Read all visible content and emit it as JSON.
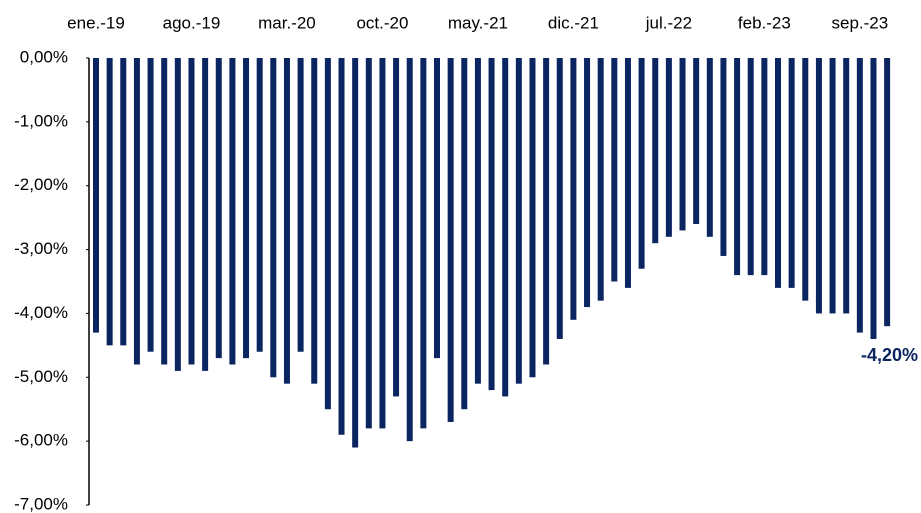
{
  "chart_data": {
    "type": "bar",
    "categories": [
      "ene.-19",
      null,
      null,
      null,
      null,
      null,
      null,
      "ago.-19",
      null,
      null,
      null,
      null,
      null,
      null,
      "mar.-20",
      null,
      null,
      null,
      null,
      null,
      null,
      "oct.-20",
      null,
      null,
      null,
      null,
      null,
      null,
      "may.-21",
      null,
      null,
      null,
      null,
      null,
      null,
      "dic.-21",
      null,
      null,
      null,
      null,
      null,
      null,
      "jul.-22",
      null,
      null,
      null,
      null,
      null,
      null,
      "feb.-23",
      null,
      null,
      null,
      null,
      null,
      null,
      "sep.-23",
      null,
      null
    ],
    "values": [
      -4.3,
      -4.5,
      -4.5,
      -4.8,
      -4.6,
      -4.8,
      -4.9,
      -4.8,
      -4.9,
      -4.7,
      -4.8,
      -4.7,
      -4.6,
      -5.0,
      -5.1,
      -4.6,
      -5.1,
      -5.5,
      -5.9,
      -6.1,
      -5.8,
      -5.8,
      -5.3,
      -6.0,
      -5.8,
      -4.7,
      -5.7,
      -5.5,
      -5.1,
      -5.2,
      -5.3,
      -5.1,
      -5.0,
      -4.8,
      -4.4,
      -4.1,
      -3.9,
      -3.8,
      -3.5,
      -3.6,
      -3.3,
      -2.9,
      -2.8,
      -2.7,
      -2.6,
      -2.8,
      -3.1,
      -3.4,
      -3.4,
      -3.4,
      -3.6,
      -3.6,
      -3.8,
      -4.0,
      -4.0,
      -4.0,
      -4.3,
      -4.4,
      -4.2
    ],
    "value_labels": [
      null,
      null,
      null,
      null,
      null,
      null,
      null,
      null,
      null,
      null,
      null,
      null,
      null,
      null,
      null,
      null,
      null,
      null,
      null,
      null,
      null,
      null,
      null,
      null,
      null,
      null,
      null,
      null,
      null,
      null,
      null,
      null,
      null,
      null,
      null,
      null,
      null,
      null,
      null,
      null,
      null,
      null,
      null,
      null,
      null,
      null,
      null,
      null,
      null,
      null,
      null,
      null,
      null,
      null,
      null,
      null,
      null,
      null,
      "-4,20%"
    ],
    "color": "#0b2561",
    "ylim": [
      -7,
      0
    ],
    "yticks": [
      {
        "value": 0,
        "label": "0,00%"
      },
      {
        "value": -1,
        "label": "-1,00%"
      },
      {
        "value": -2,
        "label": "-2,00%"
      },
      {
        "value": -3,
        "label": "-3,00%"
      },
      {
        "value": -4,
        "label": "-4,00%"
      },
      {
        "value": -5,
        "label": "-5,00%"
      },
      {
        "value": -6,
        "label": "-6,00%"
      },
      {
        "value": -7,
        "label": "-7,00%"
      }
    ],
    "grid": false
  }
}
